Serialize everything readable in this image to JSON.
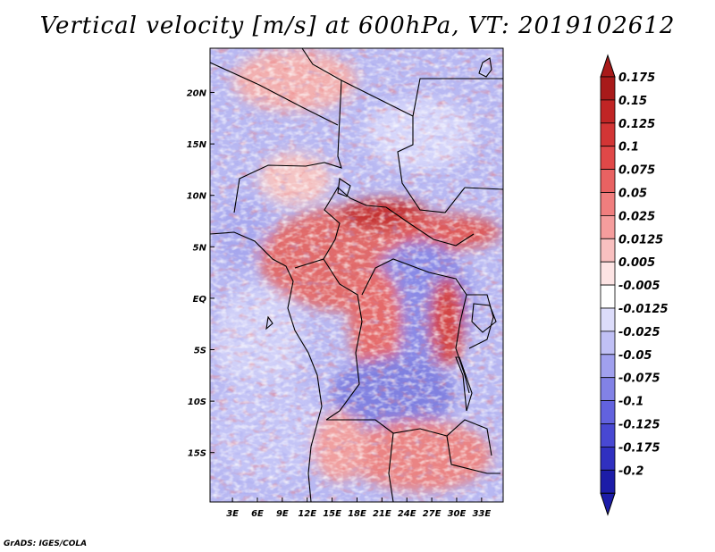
{
  "title": "Vertical velocity [m/s] at 600hPa, VT: 2019102612",
  "credit": "GrADS: IGES/COLA",
  "map": {
    "lat_labels": [
      "20N",
      "15N",
      "10N",
      "5N",
      "EQ",
      "5S",
      "10S",
      "15S"
    ],
    "lat_values": [
      20,
      15,
      10,
      5,
      0,
      -5,
      -10,
      -15
    ],
    "lon_labels": [
      "3E",
      "6E",
      "9E",
      "12E",
      "15E",
      "18E",
      "21E",
      "24E",
      "27E",
      "30E",
      "33E"
    ],
    "lon_values": [
      3,
      6,
      9,
      12,
      15,
      18,
      21,
      24,
      27,
      30,
      33
    ],
    "lat_range": [
      -19.8,
      24.3
    ],
    "lon_range": [
      0.3,
      35.6
    ]
  },
  "colorbar": {
    "labels": [
      "0.175",
      "0.15",
      "0.125",
      "0.1",
      "0.075",
      "0.05",
      "0.025",
      "0.0125",
      "0.005",
      "-0.005",
      "-0.0125",
      "-0.025",
      "-0.05",
      "-0.075",
      "-0.1",
      "-0.125",
      "-0.175",
      "-0.2"
    ],
    "colors": [
      "#a81a1a",
      "#c02525",
      "#d23535",
      "#e04848",
      "#e86262",
      "#f07e7e",
      "#f59d9d",
      "#f9c0c0",
      "#fde4e4",
      "#ffffff",
      "#dcdcfa",
      "#c0c0f5",
      "#a0a0ee",
      "#8282e6",
      "#6262de",
      "#4848d2",
      "#3030c0",
      "#1c1ca8"
    ],
    "top_arrow_color": "#a81a1a",
    "bottom_arrow_color": "#1c1ca8"
  }
}
